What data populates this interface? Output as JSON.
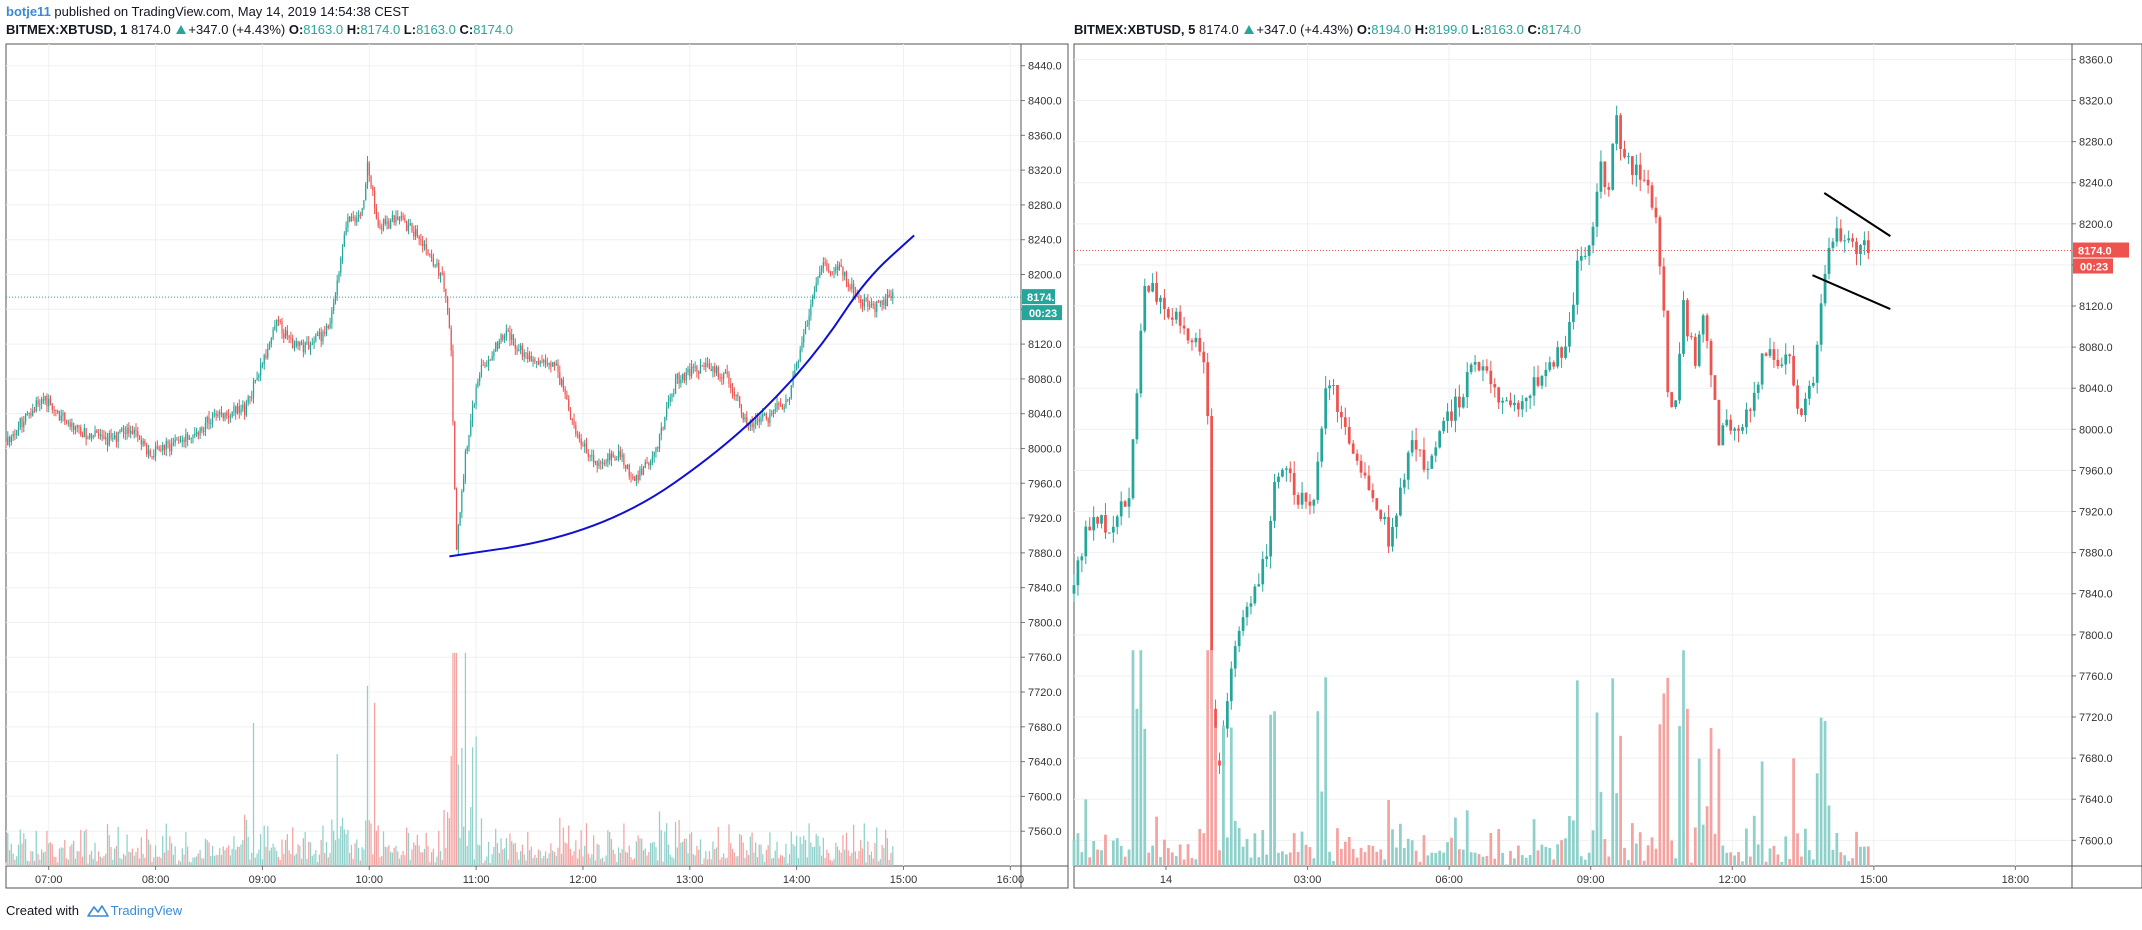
{
  "header": {
    "publisher": "botje11",
    "published_text": "published on TradingView.com, May 14, 2019 14:54:38 CEST"
  },
  "footer": {
    "created_with": "Created with",
    "brand": "TradingView"
  },
  "colors": {
    "up": "#26a69a",
    "down": "#ef5350",
    "up_volume": "#8fd1ca",
    "down_volume": "#f5a3a1",
    "curve": "#1010d0",
    "grid": "#eef0f3",
    "border": "#555555",
    "left_price_line": "#26a69a",
    "right_price_line": "#ef5350"
  },
  "chart_data": [
    {
      "type": "candlestick",
      "symbol": "BITMEX:XBTUSD, 1",
      "interval": "1",
      "last": "8174.0",
      "change": "+347.0 (+4.43%)",
      "ohlc": {
        "o_label": "O:",
        "o": "8163.0",
        "h_label": "H:",
        "h": "8174.0",
        "l_label": "L:",
        "l": "8163.0",
        "c_label": "C:",
        "c": "8174.0"
      },
      "price_label": "8174.0",
      "countdown": "00:23",
      "last_price": 8174,
      "y_ticks": [
        "8440.0",
        "8400.0",
        "8360.0",
        "8320.0",
        "8280.0",
        "8240.0",
        "8200.0",
        "8160.0",
        "8120.0",
        "8080.0",
        "8040.0",
        "8000.0",
        "7960.0",
        "7920.0",
        "7880.0",
        "7840.0",
        "7800.0",
        "7760.0",
        "7720.0",
        "7680.0",
        "7640.0",
        "7600.0",
        "7560.0"
      ],
      "y_tick_values": [
        8440,
        8400,
        8360,
        8320,
        8280,
        8240,
        8200,
        8160,
        8120,
        8080,
        8040,
        8000,
        7960,
        7920,
        7880,
        7840,
        7800,
        7760,
        7720,
        7680,
        7640,
        7600,
        7560
      ],
      "x_ticks": [
        "07:00",
        "08:00",
        "09:00",
        "10:00",
        "11:00",
        "12:00",
        "13:00",
        "14:00",
        "15:00",
        "16:00"
      ],
      "x_tick_hours": [
        7,
        8,
        9,
        10,
        11,
        12,
        13,
        14,
        15,
        16
      ],
      "x_range_hours": [
        6.6,
        16.1
      ],
      "y_range": [
        7520,
        8465
      ],
      "volume_band": [
        7525,
        7765
      ],
      "bar_minutes": 1,
      "start_hour": 6.6,
      "end_hour": 14.9,
      "price_path": [
        [
          6.6,
          8005
        ],
        [
          6.95,
          8060
        ],
        [
          7.1,
          8040
        ],
        [
          7.3,
          8020
        ],
        [
          7.55,
          8010
        ],
        [
          7.8,
          8020
        ],
        [
          7.95,
          7995
        ],
        [
          8.3,
          8010
        ],
        [
          8.6,
          8040
        ],
        [
          8.85,
          8045
        ],
        [
          9.0,
          8090
        ],
        [
          9.15,
          8145
        ],
        [
          9.3,
          8120
        ],
        [
          9.45,
          8115
        ],
        [
          9.65,
          8140
        ],
        [
          9.8,
          8260
        ],
        [
          9.95,
          8270
        ],
        [
          10.0,
          8325
        ],
        [
          10.1,
          8255
        ],
        [
          10.3,
          8265
        ],
        [
          10.5,
          8240
        ],
        [
          10.7,
          8195
        ],
        [
          10.78,
          8135
        ],
        [
          10.83,
          7880
        ],
        [
          10.92,
          7995
        ],
        [
          11.05,
          8090
        ],
        [
          11.3,
          8135
        ],
        [
          11.5,
          8100
        ],
        [
          11.75,
          8100
        ],
        [
          11.95,
          8020
        ],
        [
          12.15,
          7980
        ],
        [
          12.35,
          7995
        ],
        [
          12.5,
          7960
        ],
        [
          12.7,
          8000
        ],
        [
          12.9,
          8080
        ],
        [
          13.15,
          8095
        ],
        [
          13.35,
          8085
        ],
        [
          13.55,
          8030
        ],
        [
          13.75,
          8035
        ],
        [
          13.95,
          8060
        ],
        [
          14.1,
          8140
        ],
        [
          14.25,
          8210
        ],
        [
          14.4,
          8210
        ],
        [
          14.55,
          8180
        ],
        [
          14.7,
          8160
        ],
        [
          14.9,
          8174
        ]
      ],
      "curve_points": [
        [
          10.75,
          7876
        ],
        [
          11.7,
          7893
        ],
        [
          12.5,
          7930
        ],
        [
          13.2,
          7990
        ],
        [
          13.75,
          8050
        ],
        [
          14.25,
          8120
        ],
        [
          14.65,
          8195
        ],
        [
          15.1,
          8245
        ]
      ]
    },
    {
      "type": "candlestick",
      "symbol": "BITMEX:XBTUSD, 5",
      "interval": "5",
      "last": "8174.0",
      "change": "+347.0 (+4.43%)",
      "ohlc": {
        "o_label": "O:",
        "o": "8194.0",
        "h_label": "H:",
        "h": "8199.0",
        "l_label": "L:",
        "l": "8163.0",
        "c_label": "C:",
        "c": "8174.0"
      },
      "price_label": "8174.0",
      "countdown": "00:23",
      "last_price": 8174,
      "y_ticks": [
        "8360.0",
        "8320.0",
        "8280.0",
        "8240.0",
        "8200.0",
        "8160.0",
        "8120.0",
        "8080.0",
        "8040.0",
        "8000.0",
        "7960.0",
        "7920.0",
        "7880.0",
        "7840.0",
        "7800.0",
        "7760.0",
        "7720.0",
        "7680.0",
        "7640.0",
        "7600.0"
      ],
      "y_tick_values": [
        8360,
        8320,
        8280,
        8240,
        8200,
        8160,
        8120,
        8080,
        8040,
        8000,
        7960,
        7920,
        7880,
        7840,
        7800,
        7760,
        7720,
        7680,
        7640,
        7600
      ],
      "x_ticks": [
        "14",
        "03:00",
        "06:00",
        "09:00",
        "12:00",
        "15:00",
        "18:00"
      ],
      "x_tick_hours": [
        0,
        3,
        6,
        9,
        12,
        15,
        18
      ],
      "x_range_hours": [
        -1.95,
        19.2
      ],
      "y_range": [
        7575,
        8375
      ],
      "volume_band": [
        7583,
        7785
      ],
      "bar_minutes": 5,
      "start_hour": -1.95,
      "end_hour": 14.9,
      "price_path": [
        [
          -1.95,
          7840
        ],
        [
          -1.5,
          7915
        ],
        [
          -1.1,
          7900
        ],
        [
          -0.7,
          7935
        ],
        [
          -0.5,
          8045
        ],
        [
          -0.4,
          8140
        ],
        [
          -0.15,
          8130
        ],
        [
          0.0,
          8120
        ],
        [
          0.4,
          8100
        ],
        [
          0.75,
          8090
        ],
        [
          0.95,
          8060
        ],
        [
          1.05,
          7720
        ],
        [
          1.2,
          7660
        ],
        [
          1.5,
          7780
        ],
        [
          1.9,
          7840
        ],
        [
          2.2,
          7880
        ],
        [
          2.4,
          7960
        ],
        [
          2.7,
          7955
        ],
        [
          3.1,
          7915
        ],
        [
          3.3,
          7960
        ],
        [
          3.5,
          8045
        ],
        [
          3.7,
          8030
        ],
        [
          3.9,
          7990
        ],
        [
          4.3,
          7960
        ],
        [
          4.6,
          7920
        ],
        [
          4.85,
          7890
        ],
        [
          5.1,
          7950
        ],
        [
          5.3,
          7985
        ],
        [
          5.6,
          7960
        ],
        [
          5.85,
          7990
        ],
        [
          6.2,
          8020
        ],
        [
          6.55,
          8055
        ],
        [
          6.85,
          8060
        ],
        [
          7.15,
          8030
        ],
        [
          7.45,
          8015
        ],
        [
          7.7,
          8030
        ],
        [
          7.95,
          8050
        ],
        [
          8.2,
          8060
        ],
        [
          8.45,
          8075
        ],
        [
          8.65,
          8105
        ],
        [
          8.8,
          8155
        ],
        [
          9.05,
          8170
        ],
        [
          9.3,
          8260
        ],
        [
          9.45,
          8235
        ],
        [
          9.6,
          8310
        ],
        [
          9.75,
          8260
        ],
        [
          9.95,
          8255
        ],
        [
          10.2,
          8250
        ],
        [
          10.45,
          8215
        ],
        [
          10.65,
          8105
        ],
        [
          10.75,
          8010
        ],
        [
          10.9,
          8030
        ],
        [
          11.05,
          8120
        ],
        [
          11.3,
          8060
        ],
        [
          11.45,
          8110
        ],
        [
          11.55,
          8080
        ],
        [
          11.8,
          7990
        ],
        [
          12.05,
          8005
        ],
        [
          12.3,
          7995
        ],
        [
          12.55,
          8040
        ],
        [
          12.8,
          8075
        ],
        [
          13.05,
          8065
        ],
        [
          13.3,
          8070
        ],
        [
          13.5,
          8015
        ],
        [
          13.8,
          8045
        ],
        [
          13.95,
          8120
        ],
        [
          14.2,
          8195
        ],
        [
          14.4,
          8175
        ],
        [
          14.6,
          8180
        ],
        [
          14.9,
          8174
        ]
      ],
      "trend_lines": [
        [
          [
            13.95,
            8230
          ],
          [
            15.35,
            8188
          ]
        ],
        [
          [
            13.7,
            8150
          ],
          [
            15.35,
            8117
          ]
        ]
      ]
    }
  ]
}
